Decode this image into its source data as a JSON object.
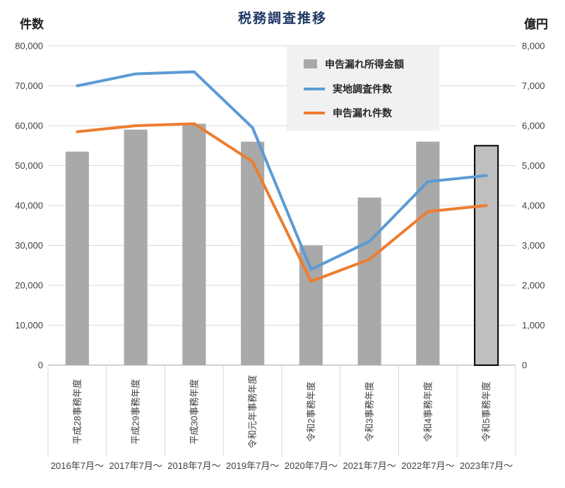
{
  "chart_data": {
    "type": "combo-bar-line",
    "title": "税務調査推移",
    "categories": [
      "平成28事務年度",
      "平成29事務年度",
      "平成30事務年度",
      "令和元年事務年度",
      "令和2事務年度",
      "令和3事務年度",
      "令和4事務年度",
      "令和5事務年度"
    ],
    "sub_categories": [
      "2016年7月～",
      "2017年7月～",
      "2018年7月～",
      "2019年7月～",
      "2020年7月～",
      "2021年7月～",
      "2022年7月～",
      "2023年7月～"
    ],
    "series": [
      {
        "name": "申告漏れ所得金額",
        "type": "bar",
        "axis": "right",
        "color": "#a9a9a9",
        "highlight_last": true,
        "values": [
          5350,
          5900,
          6050,
          5600,
          3000,
          4200,
          5600,
          5500
        ]
      },
      {
        "name": "実地調査件数",
        "type": "line",
        "axis": "left",
        "color": "#5b9bd5",
        "values": [
          70000,
          73000,
          73500,
          59500,
          24000,
          31000,
          46000,
          47500
        ]
      },
      {
        "name": "申告漏れ件数",
        "type": "line",
        "axis": "left",
        "color": "#ed7d31",
        "values": [
          58500,
          60000,
          60500,
          51000,
          21000,
          26500,
          38500,
          40000
        ]
      }
    ],
    "left_axis": {
      "title": "件数",
      "min": 0,
      "max": 80000,
      "step": 10000
    },
    "right_axis": {
      "title": "億円",
      "min": 0,
      "max": 8000,
      "step": 1000
    },
    "legend_position": "top-center-inside",
    "grid": "horizontal"
  },
  "colors": {
    "grid": "#d9d9d9",
    "axis": "#a6a6a6",
    "title": "#1f3864",
    "tick": "#404040",
    "legend_bg": "#f1f1f1",
    "bar_highlight_fill": "#bfbfbf",
    "bar_highlight_border": "#000000"
  }
}
